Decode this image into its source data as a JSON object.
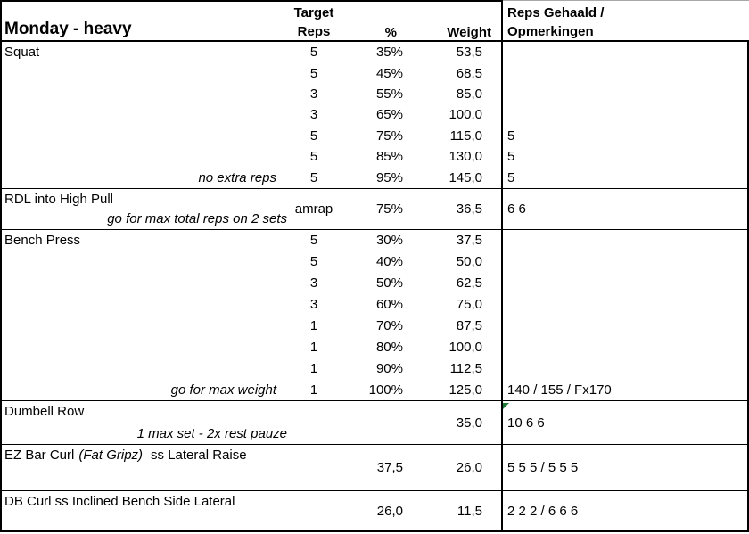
{
  "title": "Monday - heavy",
  "columns": {
    "target_line1": "Target",
    "target_line2": "Reps",
    "pct": "%",
    "weight": "Weight",
    "reps_line1": "Reps Gehaald /",
    "reps_line2": "Opmerkingen"
  },
  "colors": {
    "background": "#ffffff",
    "text": "#000000",
    "border": "#000000",
    "flag_green": "#1e7b34",
    "top_edge_gray": "#a8a8a8"
  },
  "sections": [
    {
      "name": "Squat",
      "rows": [
        {
          "target": "5",
          "pct": "35%",
          "weight": "53,5"
        },
        {
          "target": "5",
          "pct": "45%",
          "weight": "68,5"
        },
        {
          "target": "3",
          "pct": "55%",
          "weight": "85,0"
        },
        {
          "target": "3",
          "pct": "65%",
          "weight": "100,0"
        },
        {
          "target": "5",
          "pct": "75%",
          "weight": "115,0",
          "reps": "5",
          "flag": true
        },
        {
          "target": "5",
          "pct": "85%",
          "weight": "130,0",
          "reps": "5",
          "flag": true
        },
        {
          "note": "no extra reps",
          "target": "5",
          "pct": "95%",
          "weight": "145,0",
          "reps": "5",
          "flag": true
        }
      ]
    },
    {
      "name": "RDL into High Pull",
      "note": "go for max total reps on 2 sets",
      "summary": {
        "target": "amrap",
        "pct": "75%",
        "weight": "36,5",
        "reps": "6 6"
      }
    },
    {
      "name": "Bench Press",
      "rows": [
        {
          "target": "5",
          "pct": "30%",
          "weight": "37,5"
        },
        {
          "target": "5",
          "pct": "40%",
          "weight": "50,0"
        },
        {
          "target": "3",
          "pct": "50%",
          "weight": "62,5"
        },
        {
          "target": "3",
          "pct": "60%",
          "weight": "75,0"
        },
        {
          "target": "1",
          "pct": "70%",
          "weight": "87,5"
        },
        {
          "target": "1",
          "pct": "80%",
          "weight": "100,0"
        },
        {
          "target": "1",
          "pct": "90%",
          "weight": "112,5"
        },
        {
          "note": "go for max weight",
          "target": "1",
          "pct": "100%",
          "weight": "125,0",
          "reps": "140 / 155 / Fx170"
        }
      ]
    },
    {
      "name": "Dumbell Row",
      "note": "1 max set - 2x rest pauze",
      "summary": {
        "weight": "35,0",
        "reps": "10 6 6",
        "flag": true
      }
    },
    {
      "name": "EZ Bar Curl",
      "name_italic": "(Fat Gripz)",
      "name_suffix": "ss Lateral Raise",
      "summary": {
        "pct": "37,5",
        "weight": "26,0",
        "reps": "5 5 5 / 5 5 5"
      }
    },
    {
      "name": "DB Curl ss Inclined Bench Side Lateral",
      "summary": {
        "pct": "26,0",
        "weight": "11,5",
        "reps": "2 2 2 / 6 6 6"
      }
    }
  ]
}
